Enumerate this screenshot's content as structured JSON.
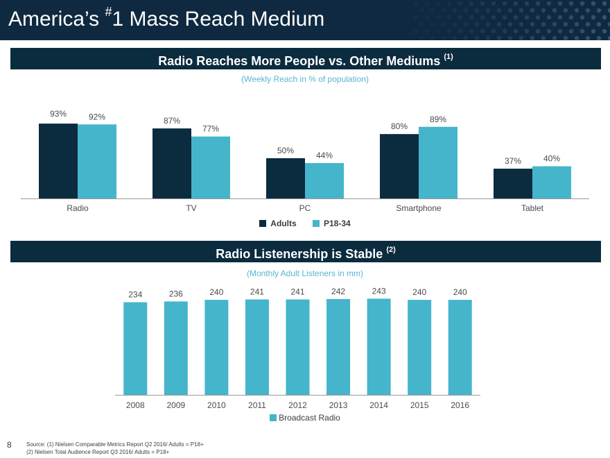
{
  "page": {
    "title_prefix": "America’s ",
    "title_superscript": "#",
    "title_main": "1 Mass Reach Medium",
    "page_number": "8"
  },
  "colors": {
    "title_bar": "#0f2a40",
    "banner": "#0b2b3e",
    "dark_navy": "#0b2b3e",
    "light_blue": "#45b5cc",
    "subtitle": "#58b5d1"
  },
  "sections": {
    "reach": {
      "heading": "Radio Reaches More People vs. Other Mediums",
      "heading_note": "(1)",
      "subtitle": "(Weekly Reach in % of population)"
    },
    "listenership": {
      "heading": "Radio Listenership is Stable",
      "heading_note": "(2)",
      "subtitle": "(Monthly Adult Listeners in mm)"
    }
  },
  "footer": {
    "source_line1": "Source: (1) Nielsen Comparable Metrics Report Q2 2016/ Adults = P18+",
    "source_line2": "(2) Nielsen Total Audience Report Q3 2016/ Adults = P18+"
  },
  "chart_data": [
    {
      "type": "bar",
      "categories": [
        "Radio",
        "TV",
        "PC",
        "Smartphone",
        "Tablet"
      ],
      "series": [
        {
          "name": "Adults",
          "values": [
            93,
            87,
            50,
            80,
            37
          ],
          "labels": [
            "93%",
            "87%",
            "50%",
            "80%",
            "37%"
          ],
          "color": "#0b2b3e"
        },
        {
          "name": "P18-34",
          "values": [
            92,
            77,
            44,
            89,
            40
          ],
          "labels": [
            "92%",
            "77%",
            "44%",
            "89%",
            "40%"
          ],
          "color": "#45b5cc"
        }
      ],
      "ylim": [
        0,
        100
      ],
      "legend_position": "bottom-center",
      "grid": false
    },
    {
      "type": "bar",
      "categories": [
        "2008",
        "2009",
        "2010",
        "2011",
        "2012",
        "2013",
        "2014",
        "2015",
        "2016"
      ],
      "series": [
        {
          "name": "Broadcast Radio",
          "values": [
            234,
            236,
            240,
            241,
            241,
            242,
            243,
            240,
            240
          ],
          "color": "#45b5cc"
        }
      ],
      "ylim": [
        0,
        270
      ],
      "legend_position": "bottom-center",
      "grid": false
    }
  ]
}
